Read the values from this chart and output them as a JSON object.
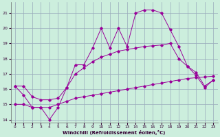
{
  "xlabel": "Windchill (Refroidissement éolien,°C)",
  "background_color": "#cceedd",
  "grid_color": "#99aabb",
  "line_color": "#990099",
  "xlim": [
    -0.5,
    23.5
  ],
  "ylim": [
    13.8,
    21.7
  ],
  "yticks": [
    14,
    15,
    16,
    17,
    18,
    19,
    20,
    21
  ],
  "xticks": [
    0,
    1,
    2,
    3,
    4,
    5,
    6,
    7,
    8,
    9,
    10,
    11,
    12,
    13,
    14,
    15,
    16,
    17,
    18,
    19,
    20,
    21,
    22,
    23
  ],
  "line1_x": [
    0,
    1,
    2,
    3,
    4,
    5,
    6,
    7,
    8,
    9,
    10,
    11,
    12,
    13,
    14,
    15,
    16,
    17,
    18,
    19,
    20,
    21,
    22,
    23
  ],
  "line1_y": [
    16.2,
    15.6,
    14.8,
    14.8,
    14.0,
    14.8,
    16.1,
    17.6,
    17.6,
    18.7,
    20.0,
    18.7,
    20.0,
    18.8,
    21.0,
    21.2,
    21.2,
    21.0,
    19.9,
    18.8,
    17.5,
    16.9,
    16.1,
    16.6
  ],
  "line2_x": [
    0,
    1,
    2,
    3,
    4,
    5,
    6,
    7,
    8,
    9,
    10,
    11,
    12,
    13,
    14,
    15,
    16,
    17,
    18,
    19,
    20,
    21,
    22,
    23
  ],
  "line2_y": [
    16.2,
    16.2,
    15.5,
    15.3,
    15.3,
    15.4,
    16.1,
    17.0,
    17.4,
    17.8,
    18.1,
    18.3,
    18.5,
    18.6,
    18.7,
    18.8,
    18.85,
    18.9,
    19.0,
    18.0,
    17.5,
    17.1,
    16.2,
    16.6
  ],
  "line3_x": [
    0,
    1,
    2,
    3,
    4,
    5,
    6,
    7,
    8,
    9,
    10,
    11,
    12,
    13,
    14,
    15,
    16,
    17,
    18,
    19,
    20,
    21,
    22,
    23
  ],
  "line3_y": [
    15.0,
    15.0,
    14.8,
    14.8,
    14.8,
    15.0,
    15.2,
    15.4,
    15.5,
    15.6,
    15.7,
    15.8,
    15.9,
    16.0,
    16.1,
    16.2,
    16.3,
    16.4,
    16.5,
    16.6,
    16.7,
    16.75,
    16.8,
    16.85
  ]
}
